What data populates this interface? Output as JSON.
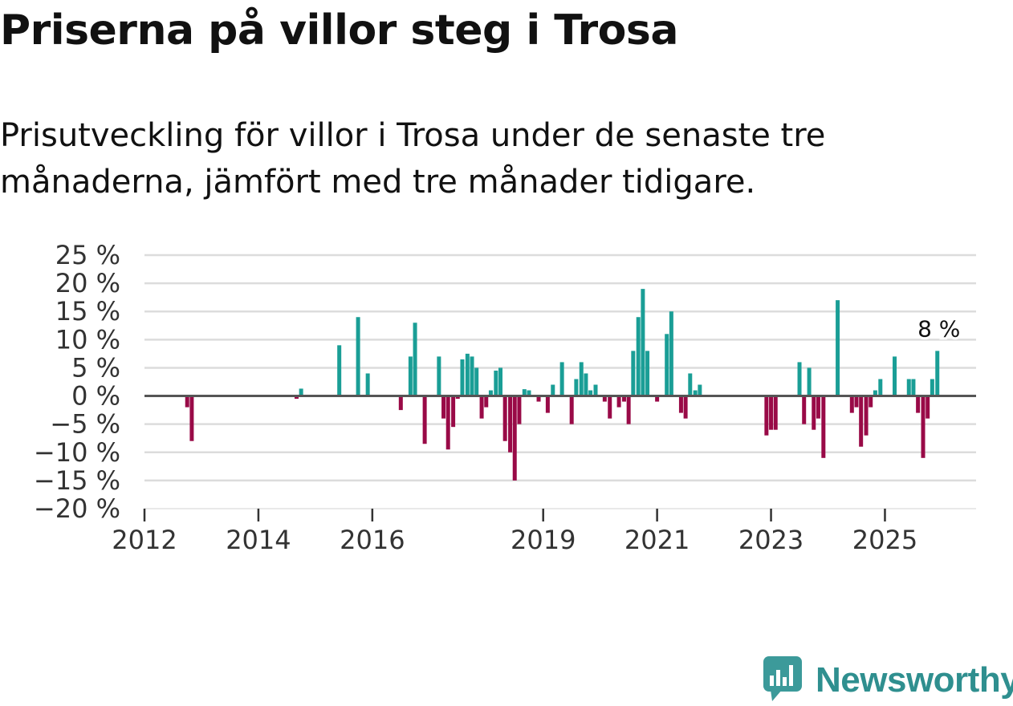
{
  "header": {
    "title": "Priserna på villor steg i Trosa",
    "subtitle": "Prisutveckling för villor i Trosa under de senaste tre månaderna, jämfört med tre månader tidigare."
  },
  "brand": {
    "name": "Newsworthy",
    "icon": "newsworthy-logo-icon",
    "color": "#3c9a9a"
  },
  "colors": {
    "positive": "#1a9e96",
    "negative": "#990a47",
    "gridline": "#dcdcdc",
    "zeroline": "#555555"
  },
  "chart_data": {
    "type": "bar",
    "title": "Priserna på villor steg i Trosa",
    "xlabel": "",
    "ylabel": "",
    "ylim": [
      -20,
      25
    ],
    "xlim": [
      2012.0,
      2026.6
    ],
    "grid": true,
    "legend": "none",
    "y_ticks": [
      25,
      20,
      15,
      10,
      5,
      0,
      -5,
      -10,
      -15,
      -20
    ],
    "y_tick_labels": [
      "25 %",
      "20 %",
      "15 %",
      "10 %",
      "5 %",
      "0 %",
      "−5 %",
      "−10 %",
      "−15 %",
      "−20 %"
    ],
    "x_ticks": [
      2012,
      2014,
      2016,
      2019,
      2021,
      2023,
      2025
    ],
    "x_tick_labels": [
      "2012",
      "2014",
      "2016",
      "2019",
      "2021",
      "2023",
      "2025"
    ],
    "annotation": {
      "x": 2025.92,
      "value": 8,
      "text": "8 %"
    },
    "series": [
      {
        "name": "Prisutveckling",
        "points": [
          {
            "x": 2012.75,
            "v": -2
          },
          {
            "x": 2012.83,
            "v": -8
          },
          {
            "x": 2014.67,
            "v": -0.5
          },
          {
            "x": 2014.75,
            "v": 1.3
          },
          {
            "x": 2015.42,
            "v": 9
          },
          {
            "x": 2015.75,
            "v": 14
          },
          {
            "x": 2015.92,
            "v": 4
          },
          {
            "x": 2016.5,
            "v": -2.5
          },
          {
            "x": 2016.67,
            "v": 7
          },
          {
            "x": 2016.75,
            "v": 13
          },
          {
            "x": 2016.92,
            "v": -8.5
          },
          {
            "x": 2017.17,
            "v": 7
          },
          {
            "x": 2017.25,
            "v": -4
          },
          {
            "x": 2017.33,
            "v": -9.5
          },
          {
            "x": 2017.42,
            "v": -5.5
          },
          {
            "x": 2017.5,
            "v": -0.5
          },
          {
            "x": 2017.58,
            "v": 6.5
          },
          {
            "x": 2017.67,
            "v": 7.5
          },
          {
            "x": 2017.75,
            "v": 7
          },
          {
            "x": 2017.83,
            "v": 5
          },
          {
            "x": 2017.92,
            "v": -4
          },
          {
            "x": 2018.0,
            "v": -2
          },
          {
            "x": 2018.08,
            "v": 1
          },
          {
            "x": 2018.17,
            "v": 4.5
          },
          {
            "x": 2018.25,
            "v": 5
          },
          {
            "x": 2018.33,
            "v": -8
          },
          {
            "x": 2018.42,
            "v": -10
          },
          {
            "x": 2018.5,
            "v": -15
          },
          {
            "x": 2018.58,
            "v": -5
          },
          {
            "x": 2018.67,
            "v": 1.2
          },
          {
            "x": 2018.75,
            "v": 1
          },
          {
            "x": 2018.92,
            "v": -1
          },
          {
            "x": 2019.08,
            "v": -3
          },
          {
            "x": 2019.17,
            "v": 2
          },
          {
            "x": 2019.33,
            "v": 6
          },
          {
            "x": 2019.5,
            "v": -5
          },
          {
            "x": 2019.58,
            "v": 3
          },
          {
            "x": 2019.67,
            "v": 6
          },
          {
            "x": 2019.75,
            "v": 4
          },
          {
            "x": 2019.83,
            "v": 1
          },
          {
            "x": 2019.92,
            "v": 2
          },
          {
            "x": 2020.08,
            "v": -1
          },
          {
            "x": 2020.17,
            "v": -4
          },
          {
            "x": 2020.33,
            "v": -2
          },
          {
            "x": 2020.42,
            "v": -1
          },
          {
            "x": 2020.5,
            "v": -5
          },
          {
            "x": 2020.58,
            "v": 8
          },
          {
            "x": 2020.67,
            "v": 14
          },
          {
            "x": 2020.75,
            "v": 19
          },
          {
            "x": 2020.83,
            "v": 8
          },
          {
            "x": 2021.0,
            "v": -1
          },
          {
            "x": 2021.17,
            "v": 11
          },
          {
            "x": 2021.25,
            "v": 15
          },
          {
            "x": 2021.42,
            "v": -3
          },
          {
            "x": 2021.5,
            "v": -4
          },
          {
            "x": 2021.58,
            "v": 4
          },
          {
            "x": 2021.67,
            "v": 1
          },
          {
            "x": 2021.75,
            "v": 2
          },
          {
            "x": 2022.92,
            "v": -7
          },
          {
            "x": 2023.0,
            "v": -6
          },
          {
            "x": 2023.08,
            "v": -6
          },
          {
            "x": 2023.5,
            "v": 6
          },
          {
            "x": 2023.58,
            "v": -5
          },
          {
            "x": 2023.67,
            "v": 5
          },
          {
            "x": 2023.75,
            "v": -6
          },
          {
            "x": 2023.83,
            "v": -4
          },
          {
            "x": 2023.92,
            "v": -11
          },
          {
            "x": 2024.17,
            "v": 17
          },
          {
            "x": 2024.42,
            "v": -3
          },
          {
            "x": 2024.5,
            "v": -2
          },
          {
            "x": 2024.58,
            "v": -9
          },
          {
            "x": 2024.67,
            "v": -7
          },
          {
            "x": 2024.75,
            "v": -2
          },
          {
            "x": 2024.83,
            "v": 1
          },
          {
            "x": 2024.92,
            "v": 3
          },
          {
            "x": 2025.17,
            "v": 7
          },
          {
            "x": 2025.42,
            "v": 3
          },
          {
            "x": 2025.5,
            "v": 3
          },
          {
            "x": 2025.58,
            "v": -3
          },
          {
            "x": 2025.67,
            "v": -11
          },
          {
            "x": 2025.75,
            "v": -4
          },
          {
            "x": 2025.83,
            "v": 3
          },
          {
            "x": 2025.92,
            "v": 8
          }
        ]
      }
    ]
  }
}
